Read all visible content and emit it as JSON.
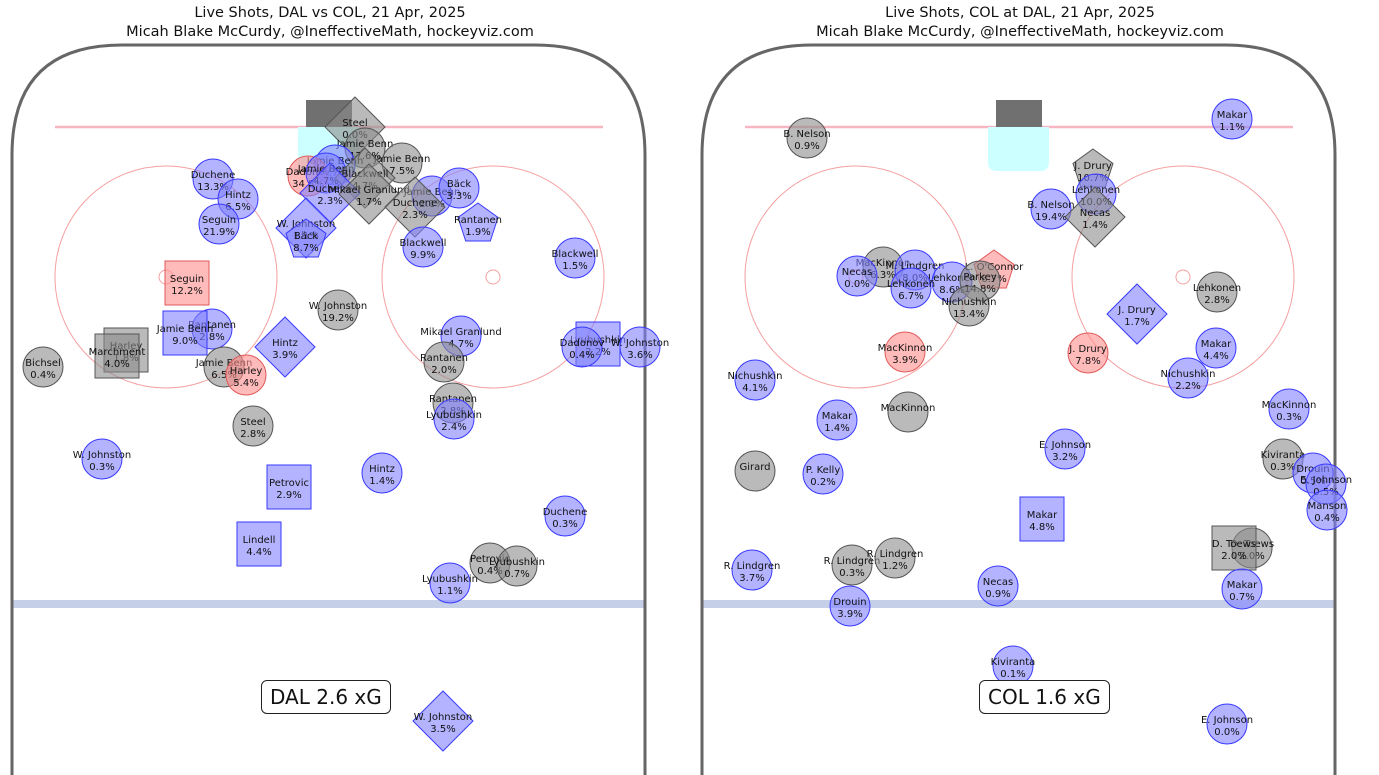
{
  "colors": {
    "dal": "#8080ff",
    "col": "#8c8c8c",
    "goal": "#ff8c8c",
    "board": "#666666",
    "redline": "#f7b6c2",
    "blueline": "#c5cfe8",
    "crease": "#ccffff",
    "net": "#707070",
    "faceoff": "#f5a0a0"
  },
  "charts": [
    {
      "title": "Live Shots, DAL vs COL, 21 Apr, 2025",
      "subtitle": "Micah Blake McCurdy, @IneffectiveMath, hockeyviz.com",
      "xg_label": "DAL 2.6 xG",
      "chart_data": {
        "type": "scatter",
        "x_range": [
          0,
          660
        ],
        "y_range": [
          0,
          775
        ],
        "points": [
          {
            "x": 355,
            "y": 127,
            "shape": "diamond",
            "team": "col",
            "name": "Steel",
            "value": "0.0%"
          },
          {
            "x": 365,
            "y": 148,
            "shape": "circle",
            "team": "col",
            "name": "Jamie Benn",
            "value": "17.6%"
          },
          {
            "x": 402,
            "y": 163,
            "shape": "circle",
            "team": "col",
            "name": "Jamie Benn",
            "value": "7.5%"
          },
          {
            "x": 335,
            "y": 165,
            "shape": "circle",
            "team": "dal",
            "name": "Jamie Benn",
            "value": "4.7%"
          },
          {
            "x": 308,
            "y": 176,
            "shape": "circle",
            "team": "goal",
            "name": "Dadonov",
            "value": "34.8%"
          },
          {
            "x": 326,
            "y": 173,
            "shape": "circle",
            "team": "dal",
            "name": "Jamie Benn",
            "value": "4.7%"
          },
          {
            "x": 365,
            "y": 178,
            "shape": "diamond",
            "team": "col",
            "name": "Blackwell",
            "value": "4.7%"
          },
          {
            "x": 330,
            "y": 193,
            "shape": "diamond",
            "team": "dal",
            "name": "Duchene",
            "value": "2.3%"
          },
          {
            "x": 369,
            "y": 194,
            "shape": "diamond",
            "team": "col",
            "name": "Mikael Granlund",
            "value": "1.7%"
          },
          {
            "x": 432,
            "y": 196,
            "shape": "circle",
            "team": "dal",
            "name": "Jamie Benn",
            "value": "2.1%"
          },
          {
            "x": 415,
            "y": 207,
            "shape": "diamond",
            "team": "col",
            "name": "Duchene",
            "value": "2.3%"
          },
          {
            "x": 459,
            "y": 188,
            "shape": "circle",
            "team": "dal",
            "name": "Bäck",
            "value": "3.3%"
          },
          {
            "x": 213,
            "y": 179,
            "shape": "circle",
            "team": "dal",
            "name": "Duchene",
            "value": "13.3%"
          },
          {
            "x": 238,
            "y": 199,
            "shape": "circle",
            "team": "dal",
            "name": "Hintz",
            "value": "6.5%"
          },
          {
            "x": 219,
            "y": 224,
            "shape": "circle",
            "team": "dal",
            "name": "Seguin",
            "value": "21.9%"
          },
          {
            "x": 306,
            "y": 228,
            "shape": "diamond",
            "team": "dal",
            "name": "W. Johnston",
            "value": "1.1%"
          },
          {
            "x": 306,
            "y": 240,
            "shape": "pentagon",
            "team": "dal",
            "name": "Bäck",
            "value": "8.7%"
          },
          {
            "x": 478,
            "y": 224,
            "shape": "pentagon",
            "team": "dal",
            "name": "Rantanen",
            "value": "1.9%"
          },
          {
            "x": 423,
            "y": 247,
            "shape": "circle",
            "team": "dal",
            "name": "Blackwell",
            "value": "9.9%"
          },
          {
            "x": 575,
            "y": 258,
            "shape": "circle",
            "team": "dal",
            "name": "Blackwell",
            "value": "1.5%"
          },
          {
            "x": 187,
            "y": 283,
            "shape": "square",
            "team": "goal",
            "name": "Seguin",
            "value": "12.2%"
          },
          {
            "x": 338,
            "y": 310,
            "shape": "circle",
            "team": "col",
            "name": "W. Johnston",
            "value": "19.2%"
          },
          {
            "x": 212,
            "y": 329,
            "shape": "circle",
            "team": "dal",
            "name": "Rantanen",
            "value": "2.8%"
          },
          {
            "x": 185,
            "y": 333,
            "shape": "square",
            "team": "dal",
            "name": "Jamie Benn",
            "value": "9.0%"
          },
          {
            "x": 461,
            "y": 336,
            "shape": "circle",
            "team": "dal",
            "name": "Mikael Granlund",
            "value": "4.7%"
          },
          {
            "x": 598,
            "y": 344,
            "shape": "square",
            "team": "dal",
            "name": "Lyubushkin",
            "value": "2.2%"
          },
          {
            "x": 582,
            "y": 347,
            "shape": "circle",
            "team": "dal",
            "name": "Dadonov",
            "value": "0.4%"
          },
          {
            "x": 640,
            "y": 347,
            "shape": "circle",
            "team": "dal",
            "name": "W. Johnston",
            "value": "3.6%"
          },
          {
            "x": 285,
            "y": 347,
            "shape": "diamond",
            "team": "dal",
            "name": "Hintz",
            "value": "3.9%"
          },
          {
            "x": 126,
            "y": 350,
            "shape": "square",
            "team": "col",
            "name": "Harley",
            "value": "1.8%"
          },
          {
            "x": 117,
            "y": 356,
            "shape": "square",
            "team": "col",
            "name": "Marchment",
            "value": "4.0%"
          },
          {
            "x": 224,
            "y": 367,
            "shape": "circle",
            "team": "col",
            "name": "Jamie Benn",
            "value": "6.5%"
          },
          {
            "x": 246,
            "y": 375,
            "shape": "circle",
            "team": "goal",
            "name": "Harley",
            "value": "5.4%"
          },
          {
            "x": 444,
            "y": 362,
            "shape": "circle",
            "team": "col",
            "name": "Rantanen",
            "value": "2.0%"
          },
          {
            "x": 43,
            "y": 367,
            "shape": "circle",
            "team": "col",
            "name": "Bichsel",
            "value": "0.4%"
          },
          {
            "x": 453,
            "y": 403,
            "shape": "circle",
            "team": "col",
            "name": "Rantanen",
            "value": "2.8%"
          },
          {
            "x": 454,
            "y": 419,
            "shape": "circle",
            "team": "dal",
            "name": "Lyubushkin",
            "value": "2.4%"
          },
          {
            "x": 253,
            "y": 426,
            "shape": "circle",
            "team": "col",
            "name": "Steel",
            "value": "2.8%"
          },
          {
            "x": 102,
            "y": 459,
            "shape": "circle",
            "team": "dal",
            "name": "W. Johnston",
            "value": "0.3%"
          },
          {
            "x": 382,
            "y": 473,
            "shape": "circle",
            "team": "dal",
            "name": "Hintz",
            "value": "1.4%"
          },
          {
            "x": 289,
            "y": 487,
            "shape": "square",
            "team": "dal",
            "name": "Petrovic",
            "value": "2.9%"
          },
          {
            "x": 565,
            "y": 516,
            "shape": "circle",
            "team": "dal",
            "name": "Duchene",
            "value": "0.3%"
          },
          {
            "x": 259,
            "y": 544,
            "shape": "square",
            "team": "dal",
            "name": "Lindell",
            "value": "4.4%"
          },
          {
            "x": 490,
            "y": 563,
            "shape": "circle",
            "team": "col",
            "name": "Petrovic",
            "value": "0.4%"
          },
          {
            "x": 517,
            "y": 566,
            "shape": "circle",
            "team": "col",
            "name": "Lyubushkin",
            "value": "0.7%"
          },
          {
            "x": 450,
            "y": 583,
            "shape": "circle",
            "team": "dal",
            "name": "Lyubushkin",
            "value": "1.1%"
          },
          {
            "x": 443,
            "y": 721,
            "shape": "diamond",
            "team": "dal",
            "name": "W. Johnston",
            "value": "3.5%"
          }
        ]
      }
    },
    {
      "title": "Live Shots, COL at DAL, 21 Apr, 2025",
      "subtitle": "Micah Blake McCurdy, @IneffectiveMath, hockeyviz.com",
      "xg_label": "COL 1.6 xG",
      "chart_data": {
        "type": "scatter",
        "x_range": [
          0,
          660
        ],
        "y_range": [
          0,
          775
        ],
        "points": [
          {
            "x": 542,
            "y": 119,
            "shape": "circle",
            "team": "dal",
            "name": "Makar",
            "value": "1.1%"
          },
          {
            "x": 117,
            "y": 138,
            "shape": "circle",
            "team": "col",
            "name": "B. Nelson",
            "value": "0.9%"
          },
          {
            "x": 403,
            "y": 170,
            "shape": "pentagon",
            "team": "col",
            "name": "J. Drury",
            "value": "10.7%"
          },
          {
            "x": 406,
            "y": 194,
            "shape": "circle",
            "team": "dal",
            "name": "Lehkonen",
            "value": "10.0%"
          },
          {
            "x": 361,
            "y": 209,
            "shape": "circle",
            "team": "dal",
            "name": "B. Nelson",
            "value": "19.4%"
          },
          {
            "x": 405,
            "y": 217,
            "shape": "diamond",
            "team": "col",
            "name": "Necas",
            "value": "1.4%"
          },
          {
            "x": 193,
            "y": 267,
            "shape": "circle",
            "team": "col",
            "name": "MacKinnon",
            "value": "6.3%"
          },
          {
            "x": 225,
            "y": 270,
            "shape": "circle",
            "team": "dal",
            "name": "M. Lindgren",
            "value": "8.0%"
          },
          {
            "x": 167,
            "y": 276,
            "shape": "circle",
            "team": "dal",
            "name": "Necas",
            "value": "0.0%"
          },
          {
            "x": 262,
            "y": 282,
            "shape": "circle",
            "team": "dal",
            "name": "Lehkonen",
            "value": "8.6%"
          },
          {
            "x": 221,
            "y": 288,
            "shape": "circle",
            "team": "dal",
            "name": "Lehkonen",
            "value": "6.7%"
          },
          {
            "x": 304,
            "y": 271,
            "shape": "pentagon",
            "team": "goal",
            "name": "L. O'Connor",
            "value": "6.7%"
          },
          {
            "x": 290,
            "y": 281,
            "shape": "circle",
            "team": "col",
            "name": "Parkey",
            "value": "14.8%"
          },
          {
            "x": 279,
            "y": 306,
            "shape": "circle",
            "team": "col",
            "name": "Nichushkin",
            "value": "13.4%"
          },
          {
            "x": 527,
            "y": 292,
            "shape": "circle",
            "team": "col",
            "name": "Lehkonen",
            "value": "2.8%"
          },
          {
            "x": 447,
            "y": 314,
            "shape": "diamond",
            "team": "dal",
            "name": "J. Drury",
            "value": "1.7%"
          },
          {
            "x": 215,
            "y": 352,
            "shape": "circle",
            "team": "goal",
            "name": "MacKinnon",
            "value": "3.9%"
          },
          {
            "x": 398,
            "y": 353,
            "shape": "circle",
            "team": "goal",
            "name": "J. Drury",
            "value": "7.8%"
          },
          {
            "x": 526,
            "y": 348,
            "shape": "circle",
            "team": "dal",
            "name": "Makar",
            "value": "4.4%"
          },
          {
            "x": 498,
            "y": 378,
            "shape": "circle",
            "team": "dal",
            "name": "Nichushkin",
            "value": "2.2%"
          },
          {
            "x": 65,
            "y": 380,
            "shape": "circle",
            "team": "dal",
            "name": "Nichushkin",
            "value": "4.1%"
          },
          {
            "x": 599,
            "y": 409,
            "shape": "circle",
            "team": "dal",
            "name": "MacKinnon",
            "value": "0.3%"
          },
          {
            "x": 147,
            "y": 420,
            "shape": "circle",
            "team": "dal",
            "name": "Makar",
            "value": "1.4%"
          },
          {
            "x": 218,
            "y": 412,
            "shape": "circle",
            "team": "col",
            "name": "MacKinnon",
            "value": ""
          },
          {
            "x": 375,
            "y": 449,
            "shape": "circle",
            "team": "dal",
            "name": "E. Johnson",
            "value": "3.2%"
          },
          {
            "x": 593,
            "y": 459,
            "shape": "circle",
            "team": "col",
            "name": "Kiviranta",
            "value": "0.3%"
          },
          {
            "x": 623,
            "y": 473,
            "shape": "circle",
            "team": "dal",
            "name": "Drouin",
            "value": "0.5%"
          },
          {
            "x": 636,
            "y": 484,
            "shape": "circle",
            "team": "dal",
            "name": "E. Johnson",
            "value": "0.5%"
          },
          {
            "x": 65,
            "y": 471,
            "shape": "circle",
            "team": "col",
            "name": "Girard",
            "value": ""
          },
          {
            "x": 133,
            "y": 474,
            "shape": "circle",
            "team": "dal",
            "name": "P. Kelly",
            "value": "0.2%"
          },
          {
            "x": 637,
            "y": 510,
            "shape": "circle",
            "team": "dal",
            "name": "Manson",
            "value": "0.4%"
          },
          {
            "x": 352,
            "y": 519,
            "shape": "square",
            "team": "dal",
            "name": "Makar",
            "value": "4.8%"
          },
          {
            "x": 562,
            "y": 548,
            "shape": "circle",
            "team": "col",
            "name": "D. Toews",
            "value": "2.0%"
          },
          {
            "x": 544,
            "y": 548,
            "shape": "square",
            "team": "col",
            "name": "D. Toews",
            "value": "2.0%"
          },
          {
            "x": 62,
            "y": 570,
            "shape": "circle",
            "team": "dal",
            "name": "R. Lindgren",
            "value": "3.7%"
          },
          {
            "x": 162,
            "y": 565,
            "shape": "circle",
            "team": "col",
            "name": "R. Lindgren",
            "value": "0.3%"
          },
          {
            "x": 205,
            "y": 558,
            "shape": "circle",
            "team": "col",
            "name": "R. Lindgren",
            "value": "1.2%"
          },
          {
            "x": 308,
            "y": 586,
            "shape": "circle",
            "team": "dal",
            "name": "Necas",
            "value": "0.9%"
          },
          {
            "x": 552,
            "y": 589,
            "shape": "circle",
            "team": "dal",
            "name": "Makar",
            "value": "0.7%"
          },
          {
            "x": 160,
            "y": 606,
            "shape": "circle",
            "team": "dal",
            "name": "Drouin",
            "value": "3.9%"
          },
          {
            "x": 323,
            "y": 666,
            "shape": "circle",
            "team": "dal",
            "name": "Kiviranta",
            "value": "0.1%"
          },
          {
            "x": 537,
            "y": 724,
            "shape": "circle",
            "team": "dal",
            "name": "E. Johnson",
            "value": "0.0%"
          }
        ]
      }
    }
  ]
}
